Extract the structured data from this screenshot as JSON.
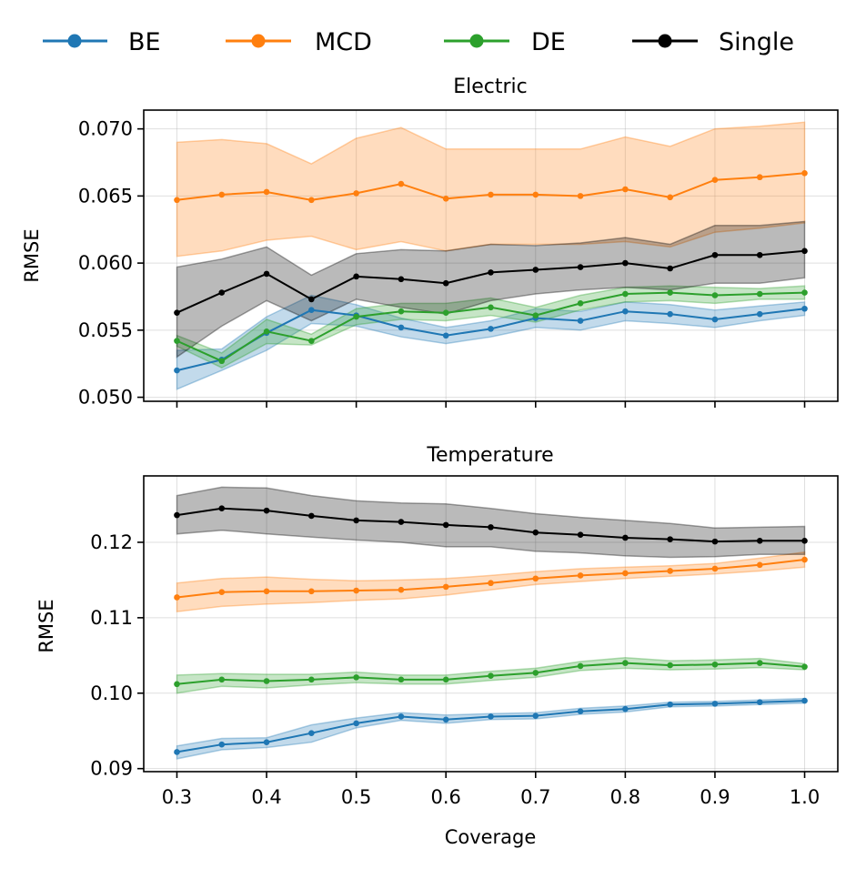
{
  "legend": [
    {
      "key": "BE",
      "label": "BE",
      "color": "#1f77b4"
    },
    {
      "key": "MCD",
      "label": "MCD",
      "color": "#ff7f0e"
    },
    {
      "key": "DE",
      "label": "DE",
      "color": "#2ca02c"
    },
    {
      "key": "Single",
      "label": "Single",
      "color": "#000000"
    }
  ],
  "chart_data": [
    {
      "type": "line",
      "title": "Electric",
      "xlabel": "",
      "ylabel": "RMSE",
      "ylim": [
        0.0497,
        0.0714
      ],
      "xlim": [
        0.263,
        1.037
      ],
      "yticks": [
        0.05,
        0.055,
        0.06,
        0.065,
        0.07
      ],
      "ytick_labels": [
        "0.050",
        "0.055",
        "0.060",
        "0.065",
        "0.070"
      ],
      "xticks": [
        0.3,
        0.4,
        0.5,
        0.6,
        0.7,
        0.8,
        0.9,
        1.0
      ],
      "xtick_labels": [
        "",
        "",
        "",
        "",
        "",
        "",
        "",
        ""
      ],
      "grid": true,
      "x": [
        0.3,
        0.35,
        0.4,
        0.45,
        0.5,
        0.55,
        0.6,
        0.65,
        0.7,
        0.75,
        0.8,
        0.85,
        0.9,
        0.95,
        1.0
      ],
      "series": [
        {
          "name": "BE",
          "color": "#1f77b4",
          "values": [
            0.052,
            0.0528,
            0.0548,
            0.0565,
            0.0561,
            0.0552,
            0.0546,
            0.0551,
            0.0559,
            0.0557,
            0.0564,
            0.0562,
            0.0558,
            0.0562,
            0.0566
          ],
          "lower": [
            0.0506,
            0.052,
            0.0535,
            0.0555,
            0.0553,
            0.0545,
            0.054,
            0.0545,
            0.0552,
            0.055,
            0.0557,
            0.0555,
            0.0552,
            0.0557,
            0.0561
          ],
          "upper": [
            0.0535,
            0.0536,
            0.056,
            0.0576,
            0.0569,
            0.0559,
            0.0552,
            0.0557,
            0.0566,
            0.0564,
            0.0571,
            0.0569,
            0.0565,
            0.0568,
            0.0571
          ]
        },
        {
          "name": "MCD",
          "color": "#ff7f0e",
          "values": [
            0.0647,
            0.0651,
            0.0653,
            0.0647,
            0.0652,
            0.0659,
            0.0648,
            0.0651,
            0.0651,
            0.065,
            0.0655,
            0.0649,
            0.0662,
            0.0664,
            0.0667
          ],
          "lower": [
            0.0605,
            0.0609,
            0.0617,
            0.062,
            0.061,
            0.0616,
            0.0609,
            0.0614,
            0.0614,
            0.0614,
            0.0616,
            0.0612,
            0.0623,
            0.0626,
            0.063
          ],
          "upper": [
            0.069,
            0.0692,
            0.0689,
            0.0674,
            0.0693,
            0.0701,
            0.0685,
            0.0685,
            0.0685,
            0.0685,
            0.0694,
            0.0687,
            0.07,
            0.0702,
            0.0705
          ]
        },
        {
          "name": "DE",
          "color": "#2ca02c",
          "values": [
            0.0542,
            0.0527,
            0.0549,
            0.0542,
            0.056,
            0.0564,
            0.0563,
            0.0567,
            0.0561,
            0.057,
            0.0577,
            0.0578,
            0.0576,
            0.0577,
            0.0578
          ],
          "lower": [
            0.0538,
            0.0522,
            0.054,
            0.0539,
            0.0554,
            0.0558,
            0.0557,
            0.0561,
            0.0556,
            0.0565,
            0.0571,
            0.0572,
            0.057,
            0.0573,
            0.0573
          ],
          "upper": [
            0.0546,
            0.0533,
            0.0558,
            0.0547,
            0.0566,
            0.057,
            0.057,
            0.0574,
            0.0567,
            0.0576,
            0.0582,
            0.0583,
            0.0582,
            0.0581,
            0.0583
          ]
        },
        {
          "name": "Single",
          "color": "#000000",
          "values": [
            0.0563,
            0.0578,
            0.0592,
            0.0573,
            0.059,
            0.0588,
            0.0585,
            0.0593,
            0.0595,
            0.0597,
            0.06,
            0.0596,
            0.0606,
            0.0606,
            0.0609
          ],
          "lower": [
            0.053,
            0.0553,
            0.0572,
            0.0557,
            0.0573,
            0.0567,
            0.0562,
            0.0572,
            0.0577,
            0.058,
            0.0582,
            0.058,
            0.0585,
            0.0585,
            0.0589
          ],
          "upper": [
            0.0597,
            0.0603,
            0.0612,
            0.0591,
            0.0607,
            0.061,
            0.0609,
            0.0614,
            0.0613,
            0.0615,
            0.0619,
            0.0614,
            0.0628,
            0.0628,
            0.0631
          ]
        }
      ]
    },
    {
      "type": "line",
      "title": "Temperature",
      "xlabel": "Coverage",
      "ylabel": "RMSE",
      "ylim": [
        0.0896,
        0.1288
      ],
      "xlim": [
        0.263,
        1.037
      ],
      "yticks": [
        0.09,
        0.1,
        0.11,
        0.12
      ],
      "ytick_labels": [
        "0.09",
        "0.10",
        "0.11",
        "0.12"
      ],
      "xticks": [
        0.3,
        0.4,
        0.5,
        0.6,
        0.7,
        0.8,
        0.9,
        1.0
      ],
      "xtick_labels": [
        "0.3",
        "0.4",
        "0.5",
        "0.6",
        "0.7",
        "0.8",
        "0.9",
        "1.0"
      ],
      "grid": true,
      "x": [
        0.3,
        0.35,
        0.4,
        0.45,
        0.5,
        0.55,
        0.6,
        0.65,
        0.7,
        0.75,
        0.8,
        0.85,
        0.9,
        0.95,
        1.0
      ],
      "series": [
        {
          "name": "BE",
          "color": "#1f77b4",
          "values": [
            0.0922,
            0.0932,
            0.0935,
            0.0947,
            0.096,
            0.0969,
            0.0965,
            0.0969,
            0.097,
            0.0976,
            0.0979,
            0.0985,
            0.0986,
            0.0988,
            0.099
          ],
          "lower": [
            0.0913,
            0.0925,
            0.0928,
            0.0935,
            0.0954,
            0.0964,
            0.096,
            0.0965,
            0.0966,
            0.0972,
            0.0975,
            0.0982,
            0.0983,
            0.0985,
            0.0987
          ],
          "upper": [
            0.093,
            0.094,
            0.0941,
            0.0958,
            0.0967,
            0.0974,
            0.0971,
            0.0973,
            0.0974,
            0.098,
            0.0983,
            0.0988,
            0.0989,
            0.0991,
            0.0993
          ]
        },
        {
          "name": "MCD",
          "color": "#ff7f0e",
          "values": [
            0.1127,
            0.1134,
            0.1135,
            0.1135,
            0.1136,
            0.1137,
            0.1141,
            0.1146,
            0.1152,
            0.1156,
            0.1159,
            0.1162,
            0.1165,
            0.117,
            0.1177
          ],
          "lower": [
            0.1108,
            0.1115,
            0.1118,
            0.112,
            0.1123,
            0.1125,
            0.113,
            0.1137,
            0.1144,
            0.1148,
            0.1152,
            0.1155,
            0.1158,
            0.1162,
            0.1167
          ],
          "upper": [
            0.1146,
            0.1152,
            0.1154,
            0.1151,
            0.1149,
            0.115,
            0.1152,
            0.1156,
            0.1161,
            0.1165,
            0.1167,
            0.1169,
            0.1172,
            0.1179,
            0.1187
          ]
        },
        {
          "name": "DE",
          "color": "#2ca02c",
          "values": [
            0.1012,
            0.1018,
            0.1016,
            0.1018,
            0.1021,
            0.1018,
            0.1018,
            0.1023,
            0.1027,
            0.1036,
            0.104,
            0.1037,
            0.1038,
            0.104,
            0.1035
          ],
          "lower": [
            0.1,
            0.1009,
            0.1007,
            0.1011,
            0.1014,
            0.1012,
            0.1012,
            0.1017,
            0.1021,
            0.103,
            0.1033,
            0.1031,
            0.1032,
            0.1034,
            0.1031
          ],
          "upper": [
            0.1024,
            0.1026,
            0.1025,
            0.1025,
            0.1028,
            0.1024,
            0.1024,
            0.1029,
            0.1033,
            0.1042,
            0.1047,
            0.1043,
            0.1044,
            0.1046,
            0.1039
          ]
        },
        {
          "name": "Single",
          "color": "#000000",
          "values": [
            0.1236,
            0.1245,
            0.1242,
            0.1235,
            0.1229,
            0.1227,
            0.1223,
            0.122,
            0.1213,
            0.121,
            0.1206,
            0.1204,
            0.1201,
            0.1202,
            0.1202
          ],
          "lower": [
            0.1211,
            0.1216,
            0.1211,
            0.1207,
            0.1203,
            0.12,
            0.1194,
            0.1194,
            0.1188,
            0.1186,
            0.1182,
            0.118,
            0.1181,
            0.1184,
            0.1184
          ],
          "upper": [
            0.1262,
            0.1273,
            0.1272,
            0.1262,
            0.1255,
            0.1252,
            0.1251,
            0.1245,
            0.1238,
            0.1233,
            0.1229,
            0.1225,
            0.1219,
            0.122,
            0.1221
          ]
        }
      ]
    }
  ]
}
